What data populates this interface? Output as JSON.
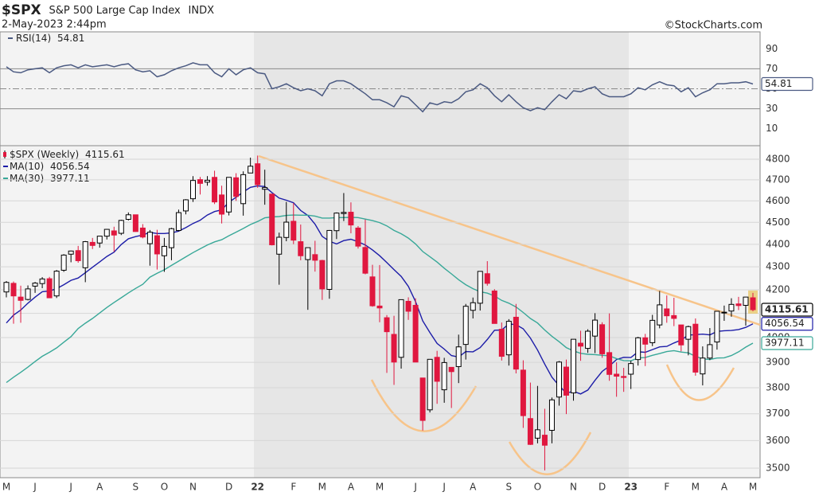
{
  "chart_data": {
    "type": "candlestick",
    "title": "$SPX",
    "subtitle": "S&P 500 Large Cap Index",
    "exchange": "INDX",
    "date": "2-May-2023 2:44pm",
    "source": "©StockCharts.com",
    "name": "$SPX (Weekly)",
    "log": true,
    "grid": true,
    "up_color": "#000000",
    "down_color": "#e0173f",
    "ylim": [
      3466,
      4867
    ],
    "yticks": [
      3500,
      3600,
      3700,
      3800,
      3900,
      4000,
      4100,
      4200,
      4300,
      4400,
      4500,
      4600,
      4700,
      4800
    ],
    "categories": [
      "M",
      null,
      null,
      null,
      "J",
      null,
      null,
      null,
      null,
      "J",
      null,
      null,
      null,
      "A",
      null,
      null,
      null,
      null,
      "S",
      null,
      null,
      null,
      "O",
      null,
      null,
      null,
      "N",
      null,
      null,
      null,
      null,
      "D",
      null,
      null,
      null,
      "22",
      null,
      null,
      null,
      null,
      "F",
      null,
      null,
      null,
      "M",
      null,
      null,
      null,
      "A",
      null,
      null,
      null,
      "M",
      null,
      null,
      null,
      null,
      "J",
      null,
      null,
      null,
      "J",
      null,
      null,
      null,
      "A",
      null,
      null,
      null,
      null,
      "S",
      null,
      null,
      null,
      "O",
      null,
      null,
      null,
      null,
      "N",
      null,
      null,
      null,
      "D",
      null,
      null,
      null,
      "23",
      null,
      null,
      null,
      null,
      "F",
      null,
      null,
      null,
      "M",
      null,
      null,
      null,
      "A",
      null,
      null,
      null,
      "M"
    ],
    "open": [
      4191,
      4228,
      4169,
      4159,
      4216,
      4227,
      4248,
      4174,
      4285,
      4356,
      4372,
      4296,
      4409,
      4406,
      4437,
      4461,
      4450,
      4514,
      4535,
      4474,
      4403,
      4439,
      4349,
      4385,
      4463,
      4553,
      4610,
      4701,
      4689,
      4712,
      4628,
      4548,
      4710,
      4587,
      4733,
      4778,
      4655,
      4632,
      4356,
      4431,
      4505,
      4412,
      4332,
      4354,
      4328,
      4202,
      4462,
      4541,
      4547,
      4474,
      4386,
      4256,
      4131,
      4082,
      4013,
      3920,
      4151,
      4134,
      3838,
      3715,
      3920,
      3792,
      3880,
      3883,
      3972,
      4113,
      4143,
      4270,
      4195,
      4034,
      3930,
      4084,
      3869,
      3682,
      3609,
      3620,
      3638,
      3764,
      3881,
      3780,
      3977,
      3956,
      4006,
      4053,
      3939,
      3853,
      3844,
      3853,
      3911,
      3999,
      3979,
      4052,
      4119,
      4091,
      4052,
      3993,
      4055,
      3854,
      3917,
      3982,
      4102,
      4110,
      4140,
      4134,
      4166
    ],
    "high": [
      4238,
      4236,
      4218,
      4219,
      4234,
      4255,
      4256,
      4286,
      4356,
      4372,
      4393,
      4415,
      4429,
      4438,
      4470,
      4480,
      4512,
      4546,
      4536,
      4492,
      4465,
      4466,
      4429,
      4475,
      4559,
      4608,
      4718,
      4714,
      4718,
      4744,
      4672,
      4713,
      4732,
      4741,
      4808,
      4818,
      4749,
      4632,
      4453,
      4595,
      4590,
      4490,
      4385,
      4416,
      4331,
      4465,
      4546,
      4637,
      4593,
      4483,
      4513,
      4309,
      4308,
      4093,
      4090,
      4159,
      4168,
      4164,
      3838,
      3913,
      3946,
      3918,
      3880,
      4012,
      4140,
      4167,
      4280,
      4325,
      4203,
      4062,
      4076,
      4140,
      3908,
      3820,
      3807,
      3719,
      3762,
      3905,
      3911,
      3993,
      4028,
      4034,
      4101,
      4063,
      4100,
      3900,
      3878,
      3906,
      4003,
      4015,
      4094,
      4195,
      4176,
      4166,
      4052,
      4049,
      4079,
      3964,
      4039,
      4110,
      4133,
      4164,
      4170,
      4170,
      4187
    ],
    "low": [
      4168,
      4057,
      4061,
      4155,
      4187,
      4207,
      4165,
      4165,
      4278,
      4320,
      4318,
      4233,
      4379,
      4385,
      4422,
      4367,
      4442,
      4509,
      4457,
      4427,
      4305,
      4288,
      4278,
      4329,
      4459,
      4537,
      4595,
      4630,
      4672,
      4585,
      4495,
      4532,
      4600,
      4531,
      4733,
      4662,
      4582,
      4395,
      4222,
      4414,
      4401,
      4329,
      4115,
      4279,
      4157,
      4162,
      4424,
      4506,
      4450,
      4381,
      4267,
      4128,
      4063,
      3858,
      3811,
      3875,
      4073,
      3901,
      3637,
      3705,
      3738,
      3742,
      3722,
      3818,
      3911,
      4079,
      4112,
      4218,
      4058,
      3907,
      3887,
      3856,
      3647,
      3584,
      3590,
      3492,
      3590,
      3731,
      3699,
      3750,
      3906,
      3938,
      3937,
      3918,
      3827,
      3765,
      3784,
      3795,
      3887,
      3885,
      3965,
      4038,
      4061,
      4047,
      3944,
      3928,
      3847,
      3809,
      3909,
      3951,
      4069,
      4086,
      4114,
      4049,
      4109
    ],
    "close": [
      4232,
      4174,
      4155,
      4204,
      4229,
      4247,
      4166,
      4281,
      4352,
      4370,
      4327,
      4412,
      4395,
      4437,
      4468,
      4442,
      4509,
      4535,
      4458,
      4433,
      4455,
      4357,
      4391,
      4471,
      4545,
      4605,
      4697,
      4683,
      4698,
      4595,
      4538,
      4712,
      4621,
      4725,
      4766,
      4677,
      4663,
      4398,
      4432,
      4501,
      4419,
      4349,
      4385,
      4329,
      4204,
      4463,
      4543,
      4546,
      4488,
      4392,
      4272,
      4132,
      4123,
      4024,
      3901,
      4158,
      4109,
      3901,
      3675,
      3912,
      3825,
      3899,
      3863,
      3962,
      4130,
      4145,
      4280,
      4228,
      4058,
      3924,
      4067,
      3873,
      3693,
      3586,
      3640,
      3583,
      3753,
      3901,
      3771,
      3993,
      3965,
      4026,
      4072,
      3934,
      3852,
      3845,
      3840,
      3895,
      3999,
      3973,
      4071,
      4136,
      4090,
      4079,
      3970,
      4045,
      3861,
      3917,
      3971,
      4109,
      4105,
      4138,
      4133,
      4169,
      4115.61
    ],
    "ma": [
      {
        "name": "MA(10)",
        "color": "#1c1ca8",
        "values": [
          4060,
          4093,
          4114,
          4143,
          4169,
          4192,
          4195,
          4205,
          4222,
          4241,
          4251,
          4274,
          4298,
          4322,
          4346,
          4365,
          4399,
          4425,
          4435,
          4442,
          4454,
          4449,
          4449,
          4452,
          4460,
          4476,
          4495,
          4510,
          4534,
          4550,
          4558,
          4594,
          4617,
          4642,
          4664,
          4671,
          4668,
          4639,
          4613,
          4603,
          4591,
          4555,
          4532,
          4492,
          4436,
          4414,
          4402,
          4417,
          4423,
          4412,
          4397,
          4375,
          4349,
          4319,
          4288,
          4258,
          4215,
          4150,
          4069,
          4021,
          3976,
          3953,
          3927,
          3921,
          3943,
          3942,
          3959,
          3992,
          4030,
          4031,
          4056,
          4053,
          4036,
          3998,
          3949,
          3893,
          3841,
          3808,
          3779,
          3786,
          3776,
          3791,
          3829,
          3864,
          3885,
          3911,
          3920,
          3919,
          3942,
          3940,
          3951,
          3962,
          3964,
          3978,
          3990,
          4010,
          4012,
          4014,
          4011,
          4025,
          4028,
          4029,
          4033,
          4042,
          4056.54
        ]
      },
      {
        "name": "MA(30)",
        "color": "#38a898",
        "values": [
          3820,
          3841,
          3860,
          3881,
          3903,
          3924,
          3940,
          3958,
          3981,
          4004,
          4037,
          4059,
          4079,
          4102,
          4125,
          4146,
          4166,
          4187,
          4206,
          4224,
          4255,
          4272,
          4287,
          4306,
          4325,
          4344,
          4363,
          4380,
          4397,
          4411,
          4421,
          4439,
          4455,
          4472,
          4490,
          4504,
          4521,
          4525,
          4527,
          4532,
          4534,
          4533,
          4533,
          4529,
          4520,
          4520,
          4522,
          4522,
          4523,
          4522,
          4515,
          4508,
          4499,
          4484,
          4463,
          4448,
          4428,
          4402,
          4368,
          4345,
          4321,
          4294,
          4269,
          4244,
          4222,
          4205,
          4192,
          4186,
          4174,
          4155,
          4143,
          4127,
          4104,
          4079,
          4060,
          4031,
          4005,
          3983,
          3959,
          3946,
          3936,
          3932,
          3931,
          3928,
          3926,
          3915,
          3907,
          3906,
          3917,
          3919,
          3928,
          3935,
          3943,
          3947,
          3941,
          3938,
          3924,
          3914,
          3911,
          3917,
          3918,
          3927,
          3942,
          3961,
          3977.11
        ]
      }
    ],
    "rsi": {
      "name": "RSI(14)",
      "color": "#4b5a82",
      "ylim": [
        -7,
        107
      ],
      "yticks": [
        10,
        30,
        50,
        70,
        90
      ],
      "levels": [
        70,
        50,
        30
      ],
      "values": [
        72,
        67,
        66,
        69,
        70,
        71,
        66,
        71,
        73,
        74,
        71,
        74,
        72,
        73,
        74,
        72,
        74,
        75,
        69,
        67,
        68,
        62,
        64,
        68,
        71,
        73,
        76,
        74,
        74,
        66,
        62,
        70,
        64,
        69,
        71,
        66,
        65,
        50,
        52,
        55,
        51,
        48,
        50,
        48,
        43,
        55,
        58,
        58,
        55,
        50,
        45,
        39,
        39,
        36,
        32,
        43,
        41,
        34,
        27,
        36,
        34,
        37,
        36,
        40,
        47,
        49,
        55,
        51,
        43,
        37,
        44,
        37,
        31,
        28,
        31,
        29,
        37,
        44,
        40,
        48,
        47,
        50,
        52,
        45,
        42,
        42,
        42,
        45,
        51,
        49,
        54,
        57,
        54,
        53,
        47,
        51,
        42,
        46,
        49,
        55,
        55,
        56,
        56,
        57,
        54.81
      ]
    }
  }
}
